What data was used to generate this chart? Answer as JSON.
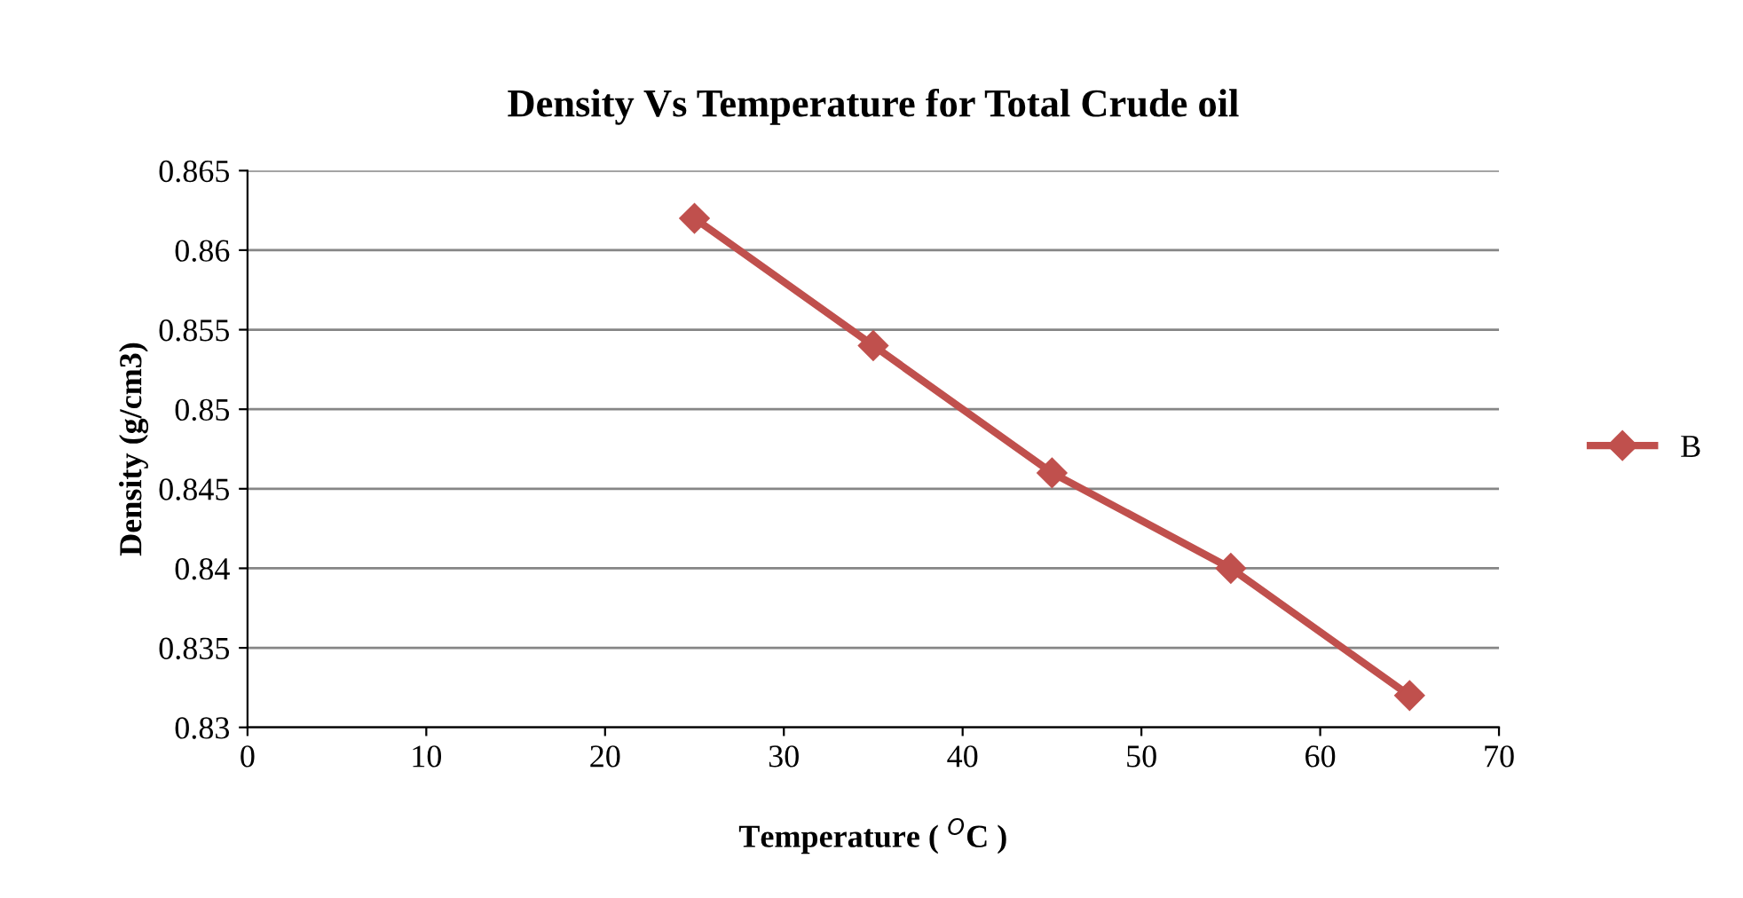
{
  "chart_data": {
    "type": "line",
    "title": "Density Vs Temperature for Total Crude oil",
    "xlabel": "Temperature ( $^{O}$C )",
    "ylabel": "Density (g/cm3)",
    "x": [
      25,
      35,
      45,
      55,
      65
    ],
    "series": [
      {
        "name": "B",
        "color": "#c0504d",
        "values": [
          0.862,
          0.854,
          0.846,
          0.84,
          0.832
        ]
      }
    ],
    "xlim": [
      0,
      70
    ],
    "xticks": [
      0,
      10,
      20,
      30,
      40,
      50,
      60,
      70
    ],
    "ylim": [
      0.83,
      0.865
    ],
    "yticks": [
      0.83,
      0.835,
      0.84,
      0.845,
      0.85,
      0.855,
      0.86,
      0.865
    ],
    "grid": "y",
    "legend": "right",
    "marker": "diamond",
    "line_style": "solid"
  }
}
